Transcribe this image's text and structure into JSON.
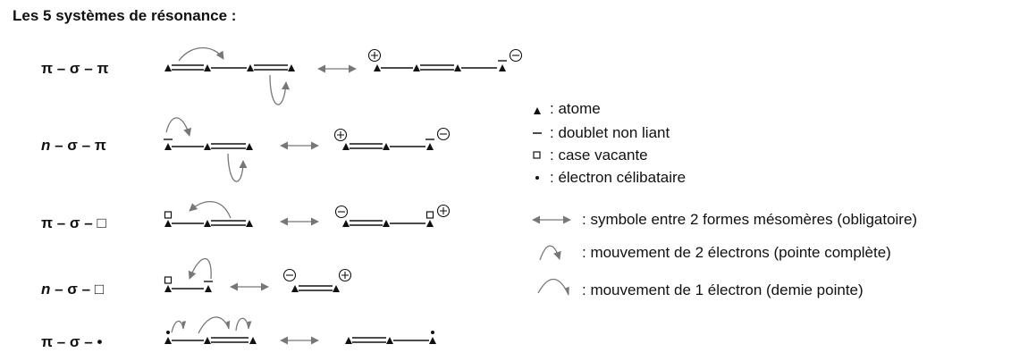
{
  "title": "Les 5 systèmes de résonance :",
  "rows": [
    {
      "label_lead": "π",
      "label_rest": " – σ – π",
      "lead_italic": false
    },
    {
      "label_lead": "n",
      "label_rest": " – σ – π",
      "lead_italic": true
    },
    {
      "label_lead": "π",
      "label_rest": " – σ – □",
      "lead_italic": false
    },
    {
      "label_lead": "n",
      "label_rest": " – σ – □",
      "lead_italic": true
    },
    {
      "label_lead": "π",
      "label_rest": " – σ – •",
      "lead_italic": false
    }
  ],
  "legend": {
    "atom": ": atome",
    "lone_pair": ": doublet non liant",
    "vacancy": ": case vacante",
    "radical": ": électron célibataire",
    "arrow": ": symbole entre 2 formes mésomères (obligatoire)",
    "two_e": ": mouvement  de 2 électrons (pointe complète)",
    "one_e": ": mouvement  de 1 électron (demie pointe)"
  },
  "colors": {
    "ink": "#111111",
    "arrow_gray": "#777777"
  }
}
